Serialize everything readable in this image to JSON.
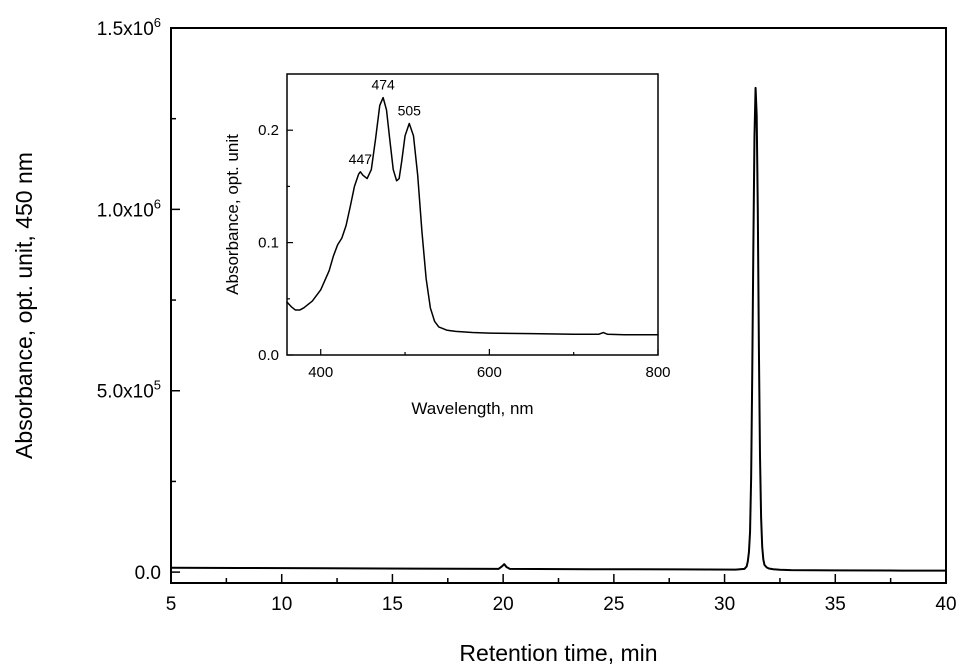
{
  "chart_data": [
    {
      "id": "main",
      "type": "line",
      "xlabel": "Retention time, min",
      "ylabel": "Absorbance, opt. unit, 450 nm",
      "xlim": [
        5,
        40
      ],
      "ylim": [
        -30000,
        1500000
      ],
      "x_ticks": [
        5,
        10,
        15,
        20,
        25,
        30,
        35,
        40
      ],
      "x_tick_labels": [
        "5",
        "10",
        "15",
        "20",
        "25",
        "30",
        "35",
        "40"
      ],
      "y_ticks": [
        0,
        500000,
        1000000,
        1500000
      ],
      "y_tick_labels": [
        {
          "base": "0.0",
          "exp": ""
        },
        {
          "base": "5.0x10",
          "exp": "5"
        },
        {
          "base": "1.0x10",
          "exp": "6"
        },
        {
          "base": "1.5x10",
          "exp": "6"
        }
      ],
      "grid": false,
      "series": [
        {
          "color": "#000000",
          "x": [
            5,
            8,
            12,
            16,
            19.8,
            19.95,
            20.05,
            20.15,
            20.3,
            24,
            28,
            30.5,
            30.9,
            31.0,
            31.05,
            31.1,
            31.15,
            31.2,
            31.25,
            31.3,
            31.35,
            31.4,
            31.45,
            31.5,
            31.55,
            31.6,
            31.65,
            31.7,
            31.75,
            31.8,
            31.9,
            32.0,
            32.2,
            32.5,
            33,
            35,
            38,
            40
          ],
          "y": [
            12000,
            11500,
            10500,
            9500,
            9000,
            16000,
            22000,
            14000,
            9000,
            8000,
            7500,
            7000,
            9000,
            16000,
            30000,
            55000,
            110000,
            260000,
            550000,
            900000,
            1200000,
            1335000,
            1260000,
            1000000,
            620000,
            320000,
            150000,
            70000,
            35000,
            20000,
            13000,
            10000,
            8000,
            6500,
            5500,
            4800,
            4200,
            4000
          ]
        }
      ]
    },
    {
      "id": "inset",
      "type": "line",
      "xlabel": "Wavelength, nm",
      "ylabel": "Absorbance, opt. unit",
      "xlim": [
        360,
        800
      ],
      "ylim": [
        0,
        0.25
      ],
      "x_ticks": [
        400,
        600,
        800
      ],
      "x_tick_labels": [
        "400",
        "600",
        "800"
      ],
      "y_ticks": [
        0.0,
        0.1,
        0.2
      ],
      "y_tick_labels": [
        "0.0",
        "0.1",
        "0.2"
      ],
      "grid": false,
      "annotations": [
        {
          "text": "447",
          "x": 447,
          "y": 0.163
        },
        {
          "text": "474",
          "x": 474,
          "y": 0.229
        },
        {
          "text": "505",
          "x": 505,
          "y": 0.206
        }
      ],
      "series": [
        {
          "color": "#000000",
          "x": [
            360,
            365,
            370,
            375,
            380,
            390,
            400,
            410,
            415,
            420,
            425,
            430,
            435,
            440,
            445,
            447,
            450,
            455,
            460,
            465,
            470,
            474,
            478,
            482,
            486,
            490,
            493,
            496,
            500,
            505,
            510,
            515,
            520,
            525,
            530,
            535,
            540,
            550,
            560,
            580,
            600,
            650,
            700,
            730,
            735,
            740,
            760,
            800
          ],
          "y": [
            0.047,
            0.043,
            0.04,
            0.04,
            0.042,
            0.048,
            0.058,
            0.075,
            0.088,
            0.098,
            0.104,
            0.115,
            0.132,
            0.15,
            0.161,
            0.163,
            0.16,
            0.157,
            0.165,
            0.192,
            0.222,
            0.229,
            0.218,
            0.191,
            0.165,
            0.155,
            0.157,
            0.172,
            0.195,
            0.206,
            0.195,
            0.16,
            0.11,
            0.068,
            0.042,
            0.03,
            0.025,
            0.022,
            0.021,
            0.02,
            0.0195,
            0.019,
            0.0185,
            0.0185,
            0.02,
            0.0185,
            0.018,
            0.018
          ]
        }
      ]
    }
  ]
}
